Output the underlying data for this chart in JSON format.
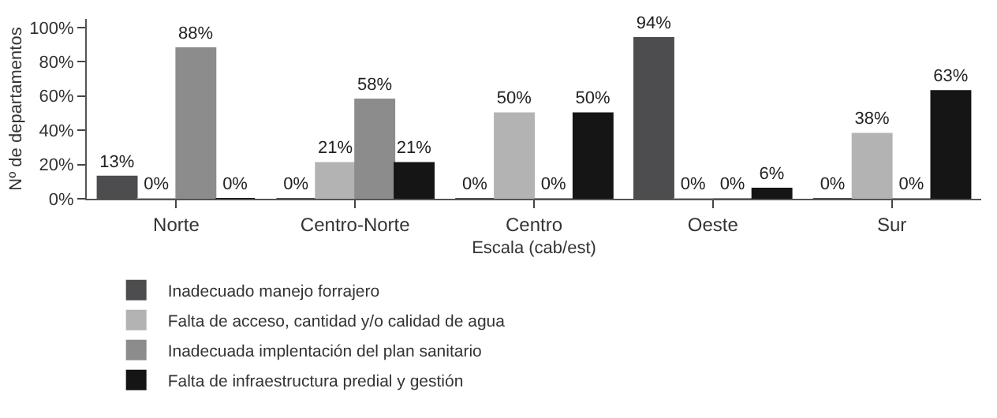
{
  "chart_data": {
    "type": "bar",
    "xlabel": "Escala (cab/est)",
    "ylabel": "Nº de departamentos",
    "categories": [
      "Norte",
      "Centro-Norte",
      "Centro",
      "Oeste",
      "Sur"
    ],
    "series": [
      {
        "name": "Inadecuado manejo forrajero",
        "color": "#4d4d4f",
        "values": [
          13,
          0,
          0,
          94,
          0
        ],
        "value_labels": [
          "13%",
          "0%",
          "0%",
          "94%",
          "0%"
        ]
      },
      {
        "name": "Falta de acceso, cantidad y/o calidad de agua",
        "color": "#b3b3b3",
        "values": [
          0,
          21,
          50,
          0,
          38
        ],
        "value_labels": [
          "0%",
          "21%",
          "50%",
          "0%",
          "38%"
        ]
      },
      {
        "name": "Inadecuada implentación del plan sanitario",
        "color": "#8c8c8c",
        "values": [
          88,
          58,
          0,
          0,
          0
        ],
        "value_labels": [
          "88%",
          "58%",
          "0%",
          "0%",
          "0%"
        ]
      },
      {
        "name": "Falta de infraestructura predial y gestión",
        "color": "#151515",
        "values": [
          0,
          21,
          50,
          6,
          63
        ],
        "value_labels": [
          "0%",
          "21%",
          "50%",
          "6%",
          "63%"
        ]
      }
    ],
    "ylim": [
      0,
      105
    ],
    "yticks": [
      {
        "value": 0,
        "label": "0%"
      },
      {
        "value": 20,
        "label": "20%"
      },
      {
        "value": 40,
        "label": "40%"
      },
      {
        "value": 60,
        "label": "60%"
      },
      {
        "value": 80,
        "label": "80%"
      },
      {
        "value": 100,
        "label": "100%"
      }
    ],
    "legend": "bottom"
  }
}
